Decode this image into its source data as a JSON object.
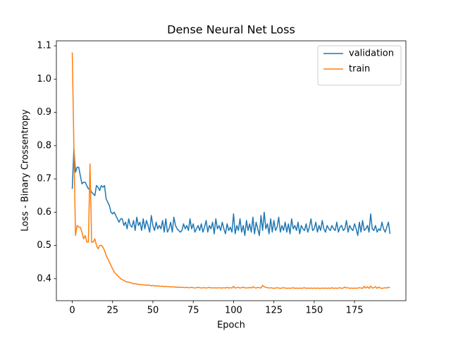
{
  "chart_data": {
    "type": "line",
    "title": "Dense Neural Net Loss",
    "xlabel": "Epoch",
    "ylabel": "Loss - Binary Crossentropy",
    "x": [
      0,
      1,
      2,
      3,
      4,
      5,
      6,
      7,
      8,
      9,
      10,
      11,
      12,
      13,
      14,
      15,
      16,
      17,
      18,
      19,
      20,
      21,
      22,
      23,
      24,
      25,
      26,
      27,
      28,
      29,
      30,
      31,
      32,
      33,
      34,
      35,
      36,
      37,
      38,
      39,
      40,
      41,
      42,
      43,
      44,
      45,
      46,
      47,
      48,
      49,
      50,
      51,
      52,
      53,
      54,
      55,
      56,
      57,
      58,
      59,
      60,
      61,
      62,
      63,
      64,
      65,
      66,
      67,
      68,
      69,
      70,
      71,
      72,
      73,
      74,
      75,
      76,
      77,
      78,
      79,
      80,
      81,
      82,
      83,
      84,
      85,
      86,
      87,
      88,
      89,
      90,
      91,
      92,
      93,
      94,
      95,
      96,
      97,
      98,
      99,
      100,
      101,
      102,
      103,
      104,
      105,
      106,
      107,
      108,
      109,
      110,
      111,
      112,
      113,
      114,
      115,
      116,
      117,
      118,
      119,
      120,
      121,
      122,
      123,
      124,
      125,
      126,
      127,
      128,
      129,
      130,
      131,
      132,
      133,
      134,
      135,
      136,
      137,
      138,
      139,
      140,
      141,
      142,
      143,
      144,
      145,
      146,
      147,
      148,
      149,
      150,
      151,
      152,
      153,
      154,
      155,
      156,
      157,
      158,
      159,
      160,
      161,
      162,
      163,
      164,
      165,
      166,
      167,
      168,
      169,
      170,
      171,
      172,
      173,
      174,
      175,
      176,
      177,
      178,
      179,
      180,
      181,
      182,
      183,
      184,
      185,
      186,
      187,
      188,
      189,
      190,
      191,
      192,
      193,
      194,
      195,
      196,
      197
    ],
    "series": [
      {
        "name": "validation",
        "color": "#1f77b4",
        "values": [
          0.67,
          0.79,
          0.72,
          0.735,
          0.735,
          0.71,
          0.685,
          0.69,
          0.69,
          0.68,
          0.67,
          0.67,
          0.66,
          0.655,
          0.65,
          0.68,
          0.675,
          0.665,
          0.68,
          0.675,
          0.68,
          0.64,
          0.63,
          0.62,
          0.6,
          0.595,
          0.6,
          0.59,
          0.58,
          0.57,
          0.58,
          0.58,
          0.56,
          0.57,
          0.55,
          0.58,
          0.56,
          0.555,
          0.575,
          0.545,
          0.585,
          0.56,
          0.57,
          0.545,
          0.58,
          0.55,
          0.575,
          0.56,
          0.54,
          0.59,
          0.56,
          0.545,
          0.57,
          0.55,
          0.56,
          0.55,
          0.575,
          0.54,
          0.58,
          0.54,
          0.55,
          0.57,
          0.54,
          0.585,
          0.56,
          0.55,
          0.545,
          0.54,
          0.545,
          0.565,
          0.55,
          0.56,
          0.545,
          0.58,
          0.55,
          0.565,
          0.54,
          0.55,
          0.56,
          0.545,
          0.565,
          0.54,
          0.555,
          0.575,
          0.54,
          0.56,
          0.55,
          0.57,
          0.535,
          0.58,
          0.55,
          0.56,
          0.545,
          0.57,
          0.55,
          0.535,
          0.565,
          0.545,
          0.555,
          0.54,
          0.595,
          0.535,
          0.56,
          0.545,
          0.58,
          0.54,
          0.56,
          0.53,
          0.575,
          0.545,
          0.565,
          0.54,
          0.585,
          0.535,
          0.57,
          0.55,
          0.53,
          0.59,
          0.545,
          0.6,
          0.55,
          0.565,
          0.535,
          0.58,
          0.54,
          0.575,
          0.545,
          0.555,
          0.585,
          0.54,
          0.56,
          0.545,
          0.57,
          0.54,
          0.565,
          0.535,
          0.58,
          0.55,
          0.56,
          0.545,
          0.57,
          0.535,
          0.56,
          0.55,
          0.545,
          0.565,
          0.54,
          0.555,
          0.58,
          0.545,
          0.55,
          0.57,
          0.54,
          0.56,
          0.545,
          0.575,
          0.55,
          0.54,
          0.56,
          0.55,
          0.545,
          0.56,
          0.55,
          0.545,
          0.57,
          0.54,
          0.555,
          0.56,
          0.545,
          0.55,
          0.575,
          0.54,
          0.56,
          0.55,
          0.545,
          0.565,
          0.55,
          0.53,
          0.57,
          0.54,
          0.575,
          0.545,
          0.55,
          0.56,
          0.54,
          0.595,
          0.55,
          0.545,
          0.56,
          0.54,
          0.55,
          0.545,
          0.57,
          0.55,
          0.54,
          0.555,
          0.57,
          0.535
        ]
      },
      {
        "name": "train",
        "color": "#ff7f0e",
        "values": [
          1.08,
          0.8,
          0.53,
          0.56,
          0.555,
          0.555,
          0.54,
          0.52,
          0.53,
          0.51,
          0.51,
          0.745,
          0.51,
          0.51,
          0.52,
          0.5,
          0.49,
          0.5,
          0.5,
          0.495,
          0.485,
          0.47,
          0.46,
          0.45,
          0.44,
          0.43,
          0.42,
          0.415,
          0.41,
          0.405,
          0.4,
          0.397,
          0.395,
          0.392,
          0.39,
          0.39,
          0.388,
          0.387,
          0.385,
          0.385,
          0.384,
          0.383,
          0.383,
          0.382,
          0.382,
          0.381,
          0.38,
          0.381,
          0.38,
          0.379,
          0.38,
          0.378,
          0.379,
          0.378,
          0.378,
          0.377,
          0.378,
          0.376,
          0.377,
          0.376,
          0.376,
          0.375,
          0.376,
          0.375,
          0.375,
          0.374,
          0.375,
          0.374,
          0.374,
          0.374,
          0.373,
          0.374,
          0.373,
          0.373,
          0.374,
          0.373,
          0.372,
          0.373,
          0.374,
          0.373,
          0.372,
          0.373,
          0.373,
          0.372,
          0.373,
          0.374,
          0.372,
          0.373,
          0.372,
          0.373,
          0.372,
          0.373,
          0.372,
          0.372,
          0.373,
          0.372,
          0.374,
          0.372,
          0.373,
          0.372,
          0.377,
          0.372,
          0.373,
          0.374,
          0.372,
          0.373,
          0.375,
          0.372,
          0.373,
          0.372,
          0.374,
          0.372,
          0.376,
          0.373,
          0.372,
          0.374,
          0.373,
          0.372,
          0.38,
          0.376,
          0.374,
          0.373,
          0.372,
          0.373,
          0.372,
          0.371,
          0.372,
          0.373,
          0.372,
          0.371,
          0.372,
          0.373,
          0.372,
          0.371,
          0.372,
          0.371,
          0.372,
          0.373,
          0.371,
          0.372,
          0.371,
          0.372,
          0.371,
          0.372,
          0.373,
          0.371,
          0.372,
          0.371,
          0.372,
          0.371,
          0.372,
          0.371,
          0.372,
          0.371,
          0.371,
          0.372,
          0.371,
          0.372,
          0.371,
          0.372,
          0.371,
          0.373,
          0.371,
          0.372,
          0.371,
          0.372,
          0.373,
          0.371,
          0.372,
          0.375,
          0.372,
          0.373,
          0.371,
          0.372,
          0.371,
          0.372,
          0.371,
          0.372,
          0.373,
          0.372,
          0.371,
          0.377,
          0.372,
          0.376,
          0.371,
          0.378,
          0.372,
          0.373,
          0.376,
          0.371,
          0.375,
          0.372,
          0.371,
          0.372,
          0.373,
          0.372,
          0.374,
          0.373
        ]
      }
    ],
    "xlim": [
      -9.85,
      206.85
    ],
    "ylim": [
      0.334,
      1.115
    ],
    "xticks": [
      0,
      25,
      50,
      75,
      100,
      125,
      150,
      175
    ],
    "yticks": [
      0.4,
      0.5,
      0.6,
      0.7,
      0.8,
      0.9,
      {
        "value": 1,
        "label": "1.0"
      },
      1.1
    ],
    "legend": "upper right"
  }
}
